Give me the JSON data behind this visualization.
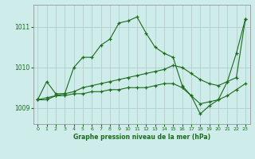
{
  "title": "Graphe pression niveau de la mer (hPa)",
  "background_color": "#ceecea",
  "grid_color": "#b0c8c5",
  "line_color": "#1a6b1a",
  "xlim": [
    -0.5,
    23.5
  ],
  "ylim": [
    1008.6,
    1011.55
  ],
  "yticks": [
    1009,
    1010,
    1011
  ],
  "xticks": [
    0,
    1,
    2,
    3,
    4,
    5,
    6,
    7,
    8,
    9,
    10,
    11,
    12,
    13,
    14,
    15,
    16,
    17,
    18,
    19,
    20,
    21,
    22,
    23
  ],
  "line1_x": [
    0,
    1,
    2,
    3,
    4,
    5,
    6,
    7,
    8,
    9,
    10,
    11,
    12,
    13,
    14,
    15,
    16,
    17,
    18,
    19,
    20,
    21,
    22,
    23
  ],
  "line1_y": [
    1009.2,
    1009.65,
    1009.35,
    1009.35,
    1010.0,
    1010.25,
    1010.25,
    1010.55,
    1010.7,
    1011.1,
    1011.15,
    1011.25,
    1010.85,
    1010.5,
    1010.35,
    1010.25,
    1009.55,
    1009.3,
    1008.85,
    1009.05,
    1009.2,
    1009.65,
    1010.35,
    1011.2
  ],
  "line2_x": [
    0,
    1,
    2,
    3,
    4,
    5,
    6,
    7,
    8,
    9,
    10,
    11,
    12,
    13,
    14,
    15,
    16,
    17,
    18,
    19,
    20,
    21,
    22,
    23
  ],
  "line2_y": [
    1009.2,
    1009.25,
    1009.3,
    1009.35,
    1009.4,
    1009.5,
    1009.55,
    1009.6,
    1009.65,
    1009.7,
    1009.75,
    1009.8,
    1009.85,
    1009.9,
    1009.95,
    1010.05,
    1010.0,
    1009.85,
    1009.7,
    1009.6,
    1009.55,
    1009.65,
    1009.75,
    1011.2
  ],
  "line3_x": [
    0,
    1,
    2,
    3,
    4,
    5,
    6,
    7,
    8,
    9,
    10,
    11,
    12,
    13,
    14,
    15,
    16,
    17,
    18,
    19,
    20,
    21,
    22,
    23
  ],
  "line3_y": [
    1009.2,
    1009.2,
    1009.3,
    1009.3,
    1009.35,
    1009.35,
    1009.4,
    1009.4,
    1009.45,
    1009.45,
    1009.5,
    1009.5,
    1009.5,
    1009.55,
    1009.6,
    1009.6,
    1009.5,
    1009.3,
    1009.1,
    1009.15,
    1009.2,
    1009.3,
    1009.45,
    1009.6
  ]
}
